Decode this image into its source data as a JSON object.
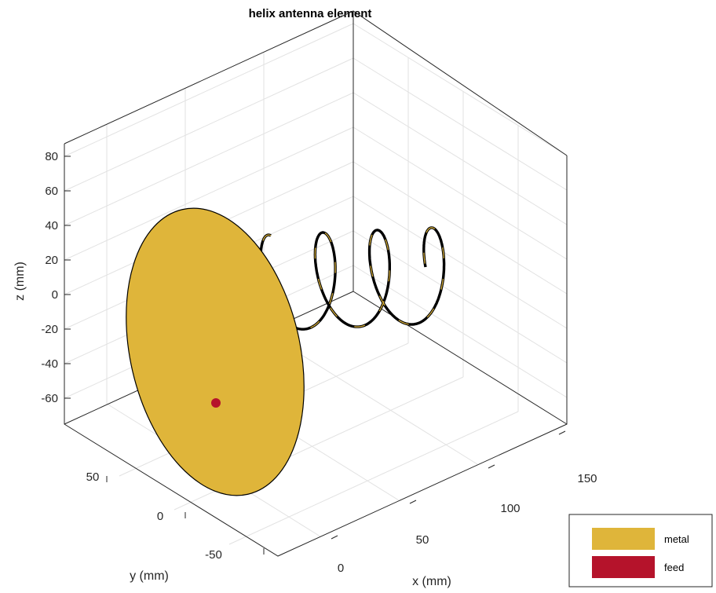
{
  "title": "helix antenna element",
  "axes": {
    "xlabel": "x (mm)",
    "ylabel": "y (mm)",
    "zlabel": "z (mm)",
    "x_ticks": [
      "0",
      "50",
      "100",
      "150"
    ],
    "y_ticks": [
      "50",
      "0",
      "-50"
    ],
    "z_ticks": [
      "80",
      "60",
      "40",
      "20",
      "0",
      "-20",
      "-40",
      "-60"
    ]
  },
  "legend": {
    "placement": "bottom-right",
    "items": [
      {
        "label": "metal",
        "color": "#dfb53a"
      },
      {
        "label": "feed",
        "color": "#b5132b"
      }
    ]
  },
  "colors": {
    "metal": "#dfb53a",
    "feed": "#b5132b",
    "edge": "#000000"
  }
}
